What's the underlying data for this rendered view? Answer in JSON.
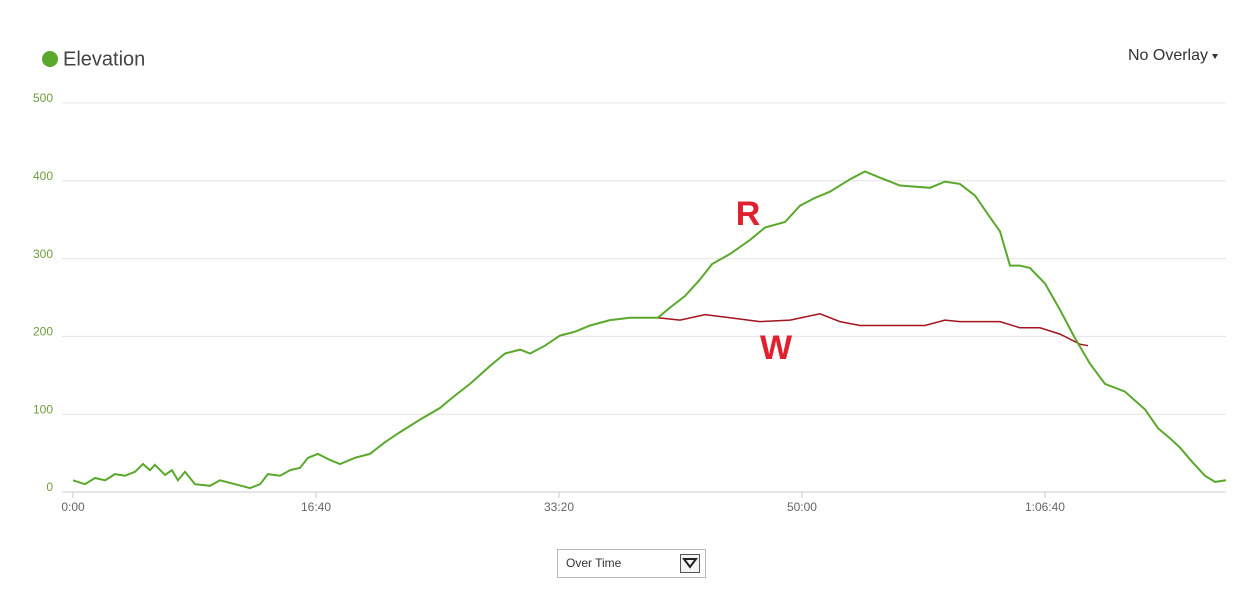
{
  "chart_data": {
    "type": "line",
    "legend_label": "Elevation",
    "overlay_menu": "No Overlay",
    "mode_menu": "Over Time",
    "annotations": [
      "R",
      "W"
    ],
    "xlim": [
      0,
      4745
    ],
    "ylim": [
      0,
      500
    ],
    "xticks": [
      {
        "value": 0,
        "label": "0:00"
      },
      {
        "value": 1000,
        "label": "16:40"
      },
      {
        "value": 2000,
        "label": "33:20"
      },
      {
        "value": 3000,
        "label": "50:00"
      },
      {
        "value": 4000,
        "label": "1:06:40"
      }
    ],
    "yticks": [
      0,
      100,
      200,
      300,
      400,
      500
    ],
    "grid": true,
    "series": [
      {
        "name": "Elevation",
        "color": "#5aa82c",
        "x": [
          0,
          49,
          91,
          132,
          173,
          214,
          255,
          288,
          317,
          337,
          379,
          407,
          432,
          461,
          502,
          564,
          605,
          667,
          728,
          770,
          802,
          852,
          893,
          934,
          967,
          1008,
          1058,
          1099,
          1160,
          1222,
          1284,
          1346,
          1428,
          1510,
          1572,
          1634,
          1716,
          1778,
          1840,
          1881,
          1942,
          2004,
          2066,
          2128,
          2210,
          2292,
          2407,
          2457,
          2519,
          2580,
          2630,
          2704,
          2786,
          2848,
          2930,
          2992,
          3053,
          3115,
          3198,
          3259,
          3321,
          3403,
          3527,
          3588,
          3650,
          3712,
          3774,
          3815,
          3856,
          3897,
          3938,
          4000,
          4062,
          4123,
          4185,
          4247,
          4329,
          4412,
          4465,
          4514,
          4556,
          4605,
          4658,
          4700,
          4745
        ],
        "values": [
          15,
          10,
          18,
          15,
          23,
          21,
          26,
          36,
          28,
          35,
          22,
          28,
          15,
          26,
          10,
          8,
          15,
          10,
          5,
          10,
          23,
          21,
          28,
          31,
          44,
          49,
          41,
          36,
          44,
          49,
          64,
          77,
          93,
          108,
          124,
          139,
          162,
          178,
          183,
          178,
          188,
          201,
          206,
          214,
          221,
          224,
          224,
          237,
          252,
          273,
          293,
          306,
          324,
          340,
          347,
          368,
          378,
          386,
          402,
          412,
          404,
          394,
          391,
          399,
          396,
          381,
          353,
          335,
          291,
          291,
          288,
          268,
          234,
          198,
          165,
          139,
          129,
          106,
          82,
          69,
          57,
          39,
          21,
          13,
          15
        ]
      },
      {
        "color": "#a3141e",
        "x": [
          2407,
          2498,
          2601,
          2704,
          2827,
          2951,
          3074,
          3156,
          3239,
          3506,
          3588,
          3650,
          3815,
          3897,
          3979,
          4062,
          4144,
          4177
        ],
        "values": [
          224,
          221,
          228,
          224,
          219,
          221,
          229,
          219,
          214,
          214,
          221,
          219,
          219,
          211,
          211,
          203,
          190,
          188
        ]
      }
    ]
  }
}
